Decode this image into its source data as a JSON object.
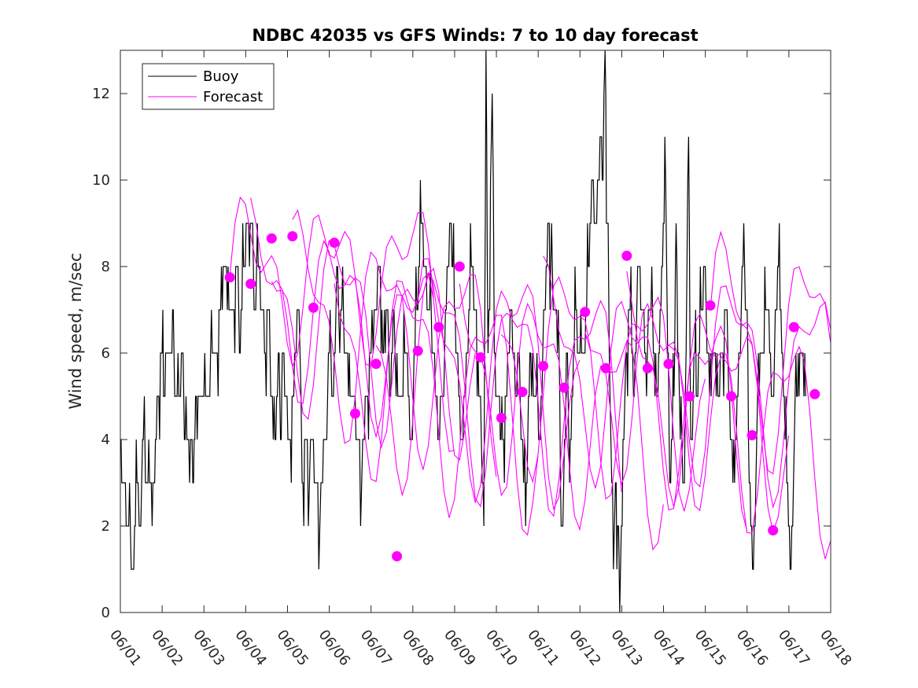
{
  "chart_data": {
    "type": "line",
    "title": "NDBC 42035 vs GFS Winds: 7 to 10 day forecast",
    "xlabel": "",
    "ylabel": "Wind speed, m/sec",
    "x_ticks": [
      "06/01",
      "06/02",
      "06/03",
      "06/04",
      "06/05",
      "06/06",
      "06/07",
      "06/08",
      "06/09",
      "06/10",
      "06/11",
      "06/12",
      "06/13",
      "06/14",
      "06/15",
      "06/16",
      "06/17",
      "06/18"
    ],
    "y_ticks": [
      "0",
      "2",
      "4",
      "6",
      "8",
      "10",
      "12"
    ],
    "xlim": [
      0,
      17
    ],
    "ylim": [
      0,
      13
    ],
    "legend": {
      "position": "top-left",
      "entries": [
        "Buoy",
        "Forecast"
      ]
    },
    "colors": {
      "buoy": "#000000",
      "forecast": "#ff00ff",
      "marker": "#ff00ff",
      "axes": "#262626"
    },
    "buoy_series": {
      "name": "Buoy",
      "knots": [
        [
          0.0,
          4
        ],
        [
          0.05,
          3
        ],
        [
          0.1,
          3
        ],
        [
          0.2,
          2
        ],
        [
          0.3,
          1
        ],
        [
          0.4,
          3
        ],
        [
          0.45,
          2
        ],
        [
          0.55,
          4
        ],
        [
          0.6,
          3
        ],
        [
          0.8,
          3
        ],
        [
          0.9,
          5
        ],
        [
          1.0,
          6
        ],
        [
          1.05,
          5
        ],
        [
          1.1,
          6
        ],
        [
          1.2,
          6
        ],
        [
          1.25,
          7
        ],
        [
          1.3,
          5
        ],
        [
          1.4,
          5
        ],
        [
          1.5,
          6
        ],
        [
          1.55,
          4
        ],
        [
          1.7,
          4
        ],
        [
          1.75,
          3
        ],
        [
          1.8,
          5
        ],
        [
          2.0,
          5
        ],
        [
          2.1,
          5
        ],
        [
          2.2,
          6
        ],
        [
          2.3,
          6
        ],
        [
          2.4,
          7
        ],
        [
          2.5,
          8
        ],
        [
          2.6,
          7
        ],
        [
          2.7,
          7
        ],
        [
          2.8,
          8
        ],
        [
          2.85,
          6
        ],
        [
          2.95,
          8
        ],
        [
          3.05,
          9
        ],
        [
          3.15,
          9
        ],
        [
          3.2,
          7
        ],
        [
          3.3,
          8
        ],
        [
          3.45,
          6
        ],
        [
          3.55,
          7
        ],
        [
          3.6,
          5
        ],
        [
          3.7,
          4
        ],
        [
          3.8,
          6
        ],
        [
          3.85,
          4
        ],
        [
          3.9,
          6
        ],
        [
          3.95,
          5
        ],
        [
          4.05,
          4
        ],
        [
          4.15,
          5
        ],
        [
          4.25,
          7
        ],
        [
          4.3,
          6
        ],
        [
          4.35,
          3
        ],
        [
          4.45,
          4
        ],
        [
          4.5,
          2
        ],
        [
          4.55,
          4
        ],
        [
          4.6,
          4
        ],
        [
          4.7,
          3
        ],
        [
          4.75,
          1
        ],
        [
          4.8,
          3
        ],
        [
          4.9,
          4
        ],
        [
          5.0,
          6
        ],
        [
          5.1,
          5
        ],
        [
          5.2,
          8
        ],
        [
          5.25,
          6
        ],
        [
          5.3,
          7
        ],
        [
          5.4,
          6
        ],
        [
          5.5,
          5
        ],
        [
          5.6,
          5
        ],
        [
          5.7,
          4
        ],
        [
          5.75,
          2
        ],
        [
          5.8,
          4
        ],
        [
          5.9,
          5
        ],
        [
          6.0,
          6
        ],
        [
          6.05,
          6
        ],
        [
          6.1,
          7
        ],
        [
          6.2,
          8
        ],
        [
          6.3,
          6
        ],
        [
          6.4,
          7
        ],
        [
          6.45,
          5
        ],
        [
          6.55,
          7
        ],
        [
          6.6,
          5
        ],
        [
          6.7,
          5
        ],
        [
          6.85,
          6
        ],
        [
          6.95,
          4
        ],
        [
          7.05,
          6
        ],
        [
          7.1,
          7
        ],
        [
          7.2,
          9
        ],
        [
          7.3,
          8
        ],
        [
          7.4,
          7
        ],
        [
          7.5,
          6
        ],
        [
          7.6,
          4
        ],
        [
          7.7,
          5
        ],
        [
          7.8,
          7
        ],
        [
          7.9,
          9
        ],
        [
          8.05,
          6
        ],
        [
          8.1,
          5
        ],
        [
          8.2,
          4
        ],
        [
          8.3,
          6
        ],
        [
          8.4,
          8
        ],
        [
          8.5,
          7
        ],
        [
          8.6,
          5
        ],
        [
          8.7,
          2
        ],
        [
          8.75,
          13
        ],
        [
          8.8,
          6
        ],
        [
          8.9,
          12
        ],
        [
          8.95,
          6
        ],
        [
          9.0,
          5
        ],
        [
          9.15,
          4
        ],
        [
          9.25,
          5
        ],
        [
          9.35,
          7
        ],
        [
          9.45,
          5
        ],
        [
          9.55,
          6
        ],
        [
          9.65,
          3
        ],
        [
          9.7,
          2
        ],
        [
          9.75,
          4
        ],
        [
          9.8,
          6
        ],
        [
          9.95,
          5
        ],
        [
          10.05,
          4
        ],
        [
          10.15,
          7
        ],
        [
          10.25,
          9
        ],
        [
          10.3,
          8
        ],
        [
          10.4,
          7
        ],
        [
          10.5,
          6
        ],
        [
          10.55,
          2
        ],
        [
          10.65,
          4
        ],
        [
          10.7,
          6
        ],
        [
          10.75,
          3
        ],
        [
          10.9,
          7
        ],
        [
          11.0,
          6
        ],
        [
          11.1,
          6
        ],
        [
          11.2,
          8
        ],
        [
          11.3,
          10
        ],
        [
          11.4,
          9
        ],
        [
          11.5,
          11
        ],
        [
          11.55,
          10
        ],
        [
          11.6,
          13
        ],
        [
          11.65,
          9
        ],
        [
          11.7,
          6
        ],
        [
          11.8,
          1
        ],
        [
          11.85,
          3
        ],
        [
          11.9,
          2
        ],
        [
          11.95,
          0
        ],
        [
          12.05,
          4
        ],
        [
          12.1,
          6
        ],
        [
          12.2,
          7
        ],
        [
          12.3,
          5
        ],
        [
          12.4,
          8
        ],
        [
          12.55,
          6
        ],
        [
          12.7,
          7
        ],
        [
          12.85,
          5
        ],
        [
          12.9,
          6
        ],
        [
          13.05,
          10
        ],
        [
          13.1,
          6
        ],
        [
          13.15,
          3
        ],
        [
          13.25,
          5
        ],
        [
          13.3,
          9
        ],
        [
          13.4,
          4
        ],
        [
          13.5,
          3
        ],
        [
          13.6,
          11
        ],
        [
          13.65,
          4
        ],
        [
          13.75,
          6
        ],
        [
          13.8,
          5
        ],
        [
          13.9,
          7
        ],
        [
          14.0,
          8
        ],
        [
          14.1,
          5
        ],
        [
          14.2,
          6
        ],
        [
          14.3,
          5
        ],
        [
          14.4,
          6
        ],
        [
          14.5,
          7
        ],
        [
          14.6,
          4
        ],
        [
          14.7,
          3
        ],
        [
          14.8,
          6
        ],
        [
          14.9,
          8
        ],
        [
          15.0,
          7
        ],
        [
          15.05,
          3
        ],
        [
          15.15,
          1
        ],
        [
          15.25,
          5
        ],
        [
          15.35,
          6
        ],
        [
          15.5,
          7
        ],
        [
          15.6,
          5
        ],
        [
          15.75,
          8
        ],
        [
          15.85,
          6
        ],
        [
          15.95,
          3
        ],
        [
          16.05,
          1
        ],
        [
          16.15,
          5
        ],
        [
          16.3,
          6
        ],
        [
          16.4,
          5
        ]
      ]
    },
    "forecast_markers": [
      [
        2.62,
        7.75
      ],
      [
        3.12,
        7.6
      ],
      [
        3.62,
        8.65
      ],
      [
        4.12,
        8.7
      ],
      [
        4.62,
        7.05
      ],
      [
        5.12,
        8.55
      ],
      [
        5.62,
        4.6
      ],
      [
        6.12,
        5.75
      ],
      [
        6.62,
        1.3
      ],
      [
        7.12,
        6.05
      ],
      [
        7.62,
        6.6
      ],
      [
        8.12,
        8.0
      ],
      [
        8.62,
        5.9
      ],
      [
        9.12,
        4.5
      ],
      [
        9.62,
        5.1
      ],
      [
        10.12,
        5.7
      ],
      [
        10.62,
        5.2
      ],
      [
        11.12,
        6.95
      ],
      [
        11.62,
        5.65
      ],
      [
        12.12,
        8.25
      ],
      [
        12.62,
        5.65
      ],
      [
        13.12,
        5.75
      ],
      [
        13.62,
        5.0
      ],
      [
        14.12,
        7.1
      ],
      [
        14.62,
        5.0
      ],
      [
        15.12,
        4.1
      ],
      [
        15.62,
        1.9
      ],
      [
        16.12,
        6.6
      ],
      [
        16.62,
        5.05
      ]
    ],
    "forecast_runs": [
      {
        "start": 2.62,
        "end": 7.5,
        "level": 7.8,
        "amp": 1.3,
        "phase": 0.0
      },
      {
        "start": 3.12,
        "end": 8.0,
        "level": 7.5,
        "amp": 1.6,
        "phase": 1.1
      },
      {
        "start": 3.62,
        "end": 8.5,
        "level": 7.2,
        "amp": 1.8,
        "phase": 2.3
      },
      {
        "start": 4.12,
        "end": 9.0,
        "level": 6.9,
        "amp": 2.0,
        "phase": 0.7
      },
      {
        "start": 5.12,
        "end": 10.0,
        "level": 6.2,
        "amp": 2.2,
        "phase": 1.9
      },
      {
        "start": 6.12,
        "end": 11.0,
        "level": 5.8,
        "amp": 2.3,
        "phase": 2.9
      },
      {
        "start": 7.12,
        "end": 12.0,
        "level": 5.7,
        "amp": 2.2,
        "phase": 0.4
      },
      {
        "start": 8.12,
        "end": 13.0,
        "level": 5.8,
        "amp": 2.0,
        "phase": 1.6
      },
      {
        "start": 9.12,
        "end": 14.0,
        "level": 6.0,
        "amp": 2.1,
        "phase": 2.6
      },
      {
        "start": 10.12,
        "end": 15.0,
        "level": 5.9,
        "amp": 1.9,
        "phase": 0.9
      },
      {
        "start": 11.12,
        "end": 16.0,
        "level": 5.8,
        "amp": 1.8,
        "phase": 2.1
      },
      {
        "start": 12.12,
        "end": 17.0,
        "level": 5.6,
        "amp": 2.0,
        "phase": 1.3
      },
      {
        "start": 13.12,
        "end": 17.0,
        "level": 5.8,
        "amp": 2.1,
        "phase": 2.7
      },
      {
        "start": 14.12,
        "end": 17.0,
        "level": 6.2,
        "amp": 2.2,
        "phase": 0.2
      }
    ]
  }
}
